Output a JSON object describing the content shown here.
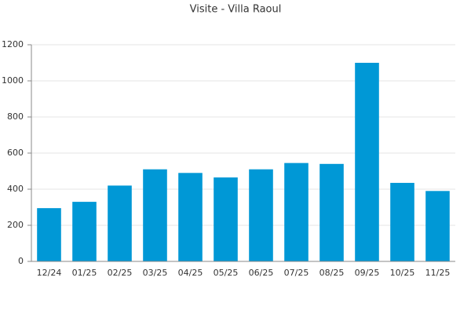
{
  "chart_data": {
    "type": "bar",
    "title": "Visite - Villa Raoul",
    "categories": [
      "12/24",
      "01/25",
      "02/25",
      "03/25",
      "04/25",
      "05/25",
      "06/25",
      "07/25",
      "08/25",
      "09/25",
      "10/25",
      "11/25"
    ],
    "values": [
      295,
      330,
      420,
      510,
      490,
      465,
      510,
      545,
      540,
      1100,
      435,
      390
    ],
    "color": "#0098d6",
    "ylim": [
      0,
      1200
    ],
    "yticks": [
      0,
      200,
      400,
      600,
      800,
      1000,
      1200
    ],
    "grid": true
  }
}
